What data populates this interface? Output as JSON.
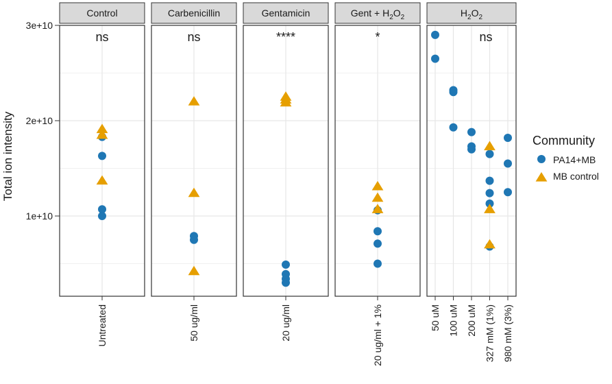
{
  "chart_data": {
    "type": "scatter",
    "ylabel": "Total ion intensity",
    "yticks": [
      "1e+10",
      "2e+10",
      "3e+10"
    ],
    "ytick_values": [
      10000000000,
      20000000000,
      30000000000
    ],
    "ylim": [
      2200000000,
      31000000000
    ],
    "grid": true,
    "legend": {
      "title": "Community",
      "position": "right",
      "entries": [
        {
          "name": "PA14+MB",
          "shape": "circle",
          "color": "#1f77b4"
        },
        {
          "name": "MB control",
          "shape": "triangle",
          "color": "#e69f00"
        }
      ]
    },
    "panels": [
      {
        "strip": "Control",
        "annotation": "ns",
        "categories": [
          "Untreated"
        ],
        "series": [
          {
            "name": "PA14+MB",
            "points": [
              {
                "x": "Untreated",
                "y": 18300000000
              },
              {
                "x": "Untreated",
                "y": 16300000000
              },
              {
                "x": "Untreated",
                "y": 10700000000
              },
              {
                "x": "Untreated",
                "y": 10000000000
              }
            ]
          },
          {
            "name": "MB control",
            "points": [
              {
                "x": "Untreated",
                "y": 19100000000
              },
              {
                "x": "Untreated",
                "y": 18500000000
              },
              {
                "x": "Untreated",
                "y": 13700000000
              }
            ]
          }
        ]
      },
      {
        "strip": "Carbenicillin",
        "annotation": "ns",
        "categories": [
          "50 ug/ml"
        ],
        "series": [
          {
            "name": "PA14+MB",
            "points": [
              {
                "x": "50 ug/ml",
                "y": 7900000000
              },
              {
                "x": "50 ug/ml",
                "y": 7500000000
              }
            ]
          },
          {
            "name": "MB control",
            "points": [
              {
                "x": "50 ug/ml",
                "y": 22000000000
              },
              {
                "x": "50 ug/ml",
                "y": 12400000000
              },
              {
                "x": "50 ug/ml",
                "y": 4200000000
              }
            ]
          }
        ]
      },
      {
        "strip": "Gentamicin",
        "annotation": "****",
        "categories": [
          "20 ug/ml"
        ],
        "series": [
          {
            "name": "PA14+MB",
            "points": [
              {
                "x": "20 ug/ml",
                "y": 4900000000
              },
              {
                "x": "20 ug/ml",
                "y": 3900000000
              },
              {
                "x": "20 ug/ml",
                "y": 3400000000
              },
              {
                "x": "20 ug/ml",
                "y": 3000000000
              }
            ]
          },
          {
            "name": "MB control",
            "points": [
              {
                "x": "20 ug/ml",
                "y": 22500000000
              },
              {
                "x": "20 ug/ml",
                "y": 22200000000
              },
              {
                "x": "20 ug/ml",
                "y": 21900000000
              }
            ]
          }
        ]
      },
      {
        "strip": "Gent + H2O2",
        "strip_parts": [
          "Gent + H",
          "2",
          "O",
          "2"
        ],
        "annotation": "*",
        "categories": [
          "20 ug/ml + 1%"
        ],
        "series": [
          {
            "name": "PA14+MB",
            "points": [
              {
                "x": "20 ug/ml + 1%",
                "y": 10600000000
              },
              {
                "x": "20 ug/ml + 1%",
                "y": 8400000000
              },
              {
                "x": "20 ug/ml + 1%",
                "y": 7100000000
              },
              {
                "x": "20 ug/ml + 1%",
                "y": 5000000000
              }
            ]
          },
          {
            "name": "MB control",
            "points": [
              {
                "x": "20 ug/ml + 1%",
                "y": 13100000000
              },
              {
                "x": "20 ug/ml + 1%",
                "y": 11900000000
              },
              {
                "x": "20 ug/ml + 1%",
                "y": 10700000000
              }
            ]
          }
        ]
      },
      {
        "strip": "H2O2",
        "strip_parts": [
          "H",
          "2",
          "O",
          "2"
        ],
        "annotation": "ns",
        "categories": [
          "50 uM",
          "100 uM",
          "200 uM",
          "327 mM (1%)",
          "980 mM (3%)"
        ],
        "series": [
          {
            "name": "PA14+MB",
            "points": [
              {
                "x": "50 uM",
                "y": 29000000000
              },
              {
                "x": "50 uM",
                "y": 26500000000
              },
              {
                "x": "100 uM",
                "y": 23200000000
              },
              {
                "x": "100 uM",
                "y": 23000000000
              },
              {
                "x": "100 uM",
                "y": 19300000000
              },
              {
                "x": "200 uM",
                "y": 18800000000
              },
              {
                "x": "200 uM",
                "y": 17300000000
              },
              {
                "x": "200 uM",
                "y": 17000000000
              },
              {
                "x": "327 mM (1%)",
                "y": 16500000000
              },
              {
                "x": "327 mM (1%)",
                "y": 13700000000
              },
              {
                "x": "327 mM (1%)",
                "y": 12400000000
              },
              {
                "x": "327 mM (1%)",
                "y": 11300000000
              },
              {
                "x": "327 mM (1%)",
                "y": 6800000000
              },
              {
                "x": "980 mM (3%)",
                "y": 18200000000
              },
              {
                "x": "980 mM (3%)",
                "y": 15500000000
              },
              {
                "x": "980 mM (3%)",
                "y": 12500000000
              }
            ]
          },
          {
            "name": "MB control",
            "points": [
              {
                "x": "327 mM (1%)",
                "y": 17300000000
              },
              {
                "x": "327 mM (1%)",
                "y": 10700000000
              },
              {
                "x": "327 mM (1%)",
                "y": 7000000000
              }
            ]
          }
        ]
      }
    ]
  }
}
